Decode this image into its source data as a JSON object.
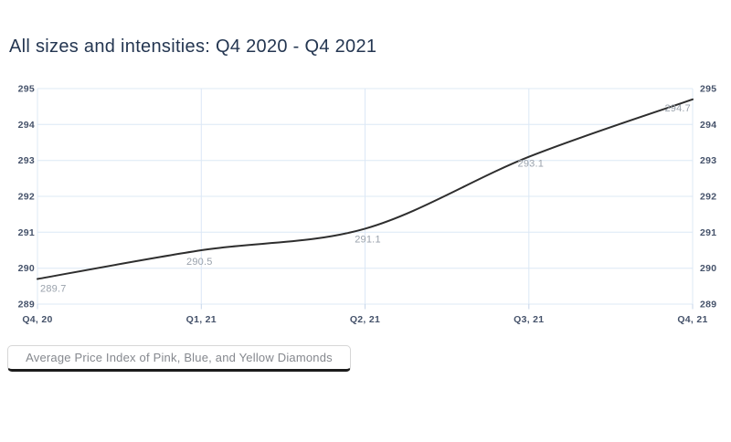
{
  "chart_data": {
    "type": "line",
    "title": "All sizes and intensities: Q4 2020 - Q4 2021",
    "categories": [
      "Q4, 20",
      "Q1, 21",
      "Q2, 21",
      "Q3, 21",
      "Q4, 21"
    ],
    "series": [
      {
        "name": "Average Price Index of Pink, Blue, and Yellow Diamonds",
        "values": [
          289.7,
          290.5,
          291.1,
          293.1,
          294.7
        ]
      }
    ],
    "point_labels": [
      "289.7",
      "290.5",
      "291.1",
      "293.1",
      "294.7"
    ],
    "ylim": [
      289,
      295
    ],
    "y_ticks": [
      289,
      290,
      291,
      292,
      293,
      294,
      295
    ],
    "y_axis_sides": "both",
    "grid": true,
    "legend_position": "bottom-left",
    "colors": {
      "line": "#2e2e2e",
      "grid": "#dce8f6",
      "tick": "#c7d6ea",
      "axis_text": "#45526a",
      "point_label": "#9aa2ac",
      "title": "#243651",
      "legend_text": "#85888e",
      "legend_border": "#d6d6d6",
      "legend_underline": "#1c1c1c",
      "background": "#ffffff"
    }
  }
}
